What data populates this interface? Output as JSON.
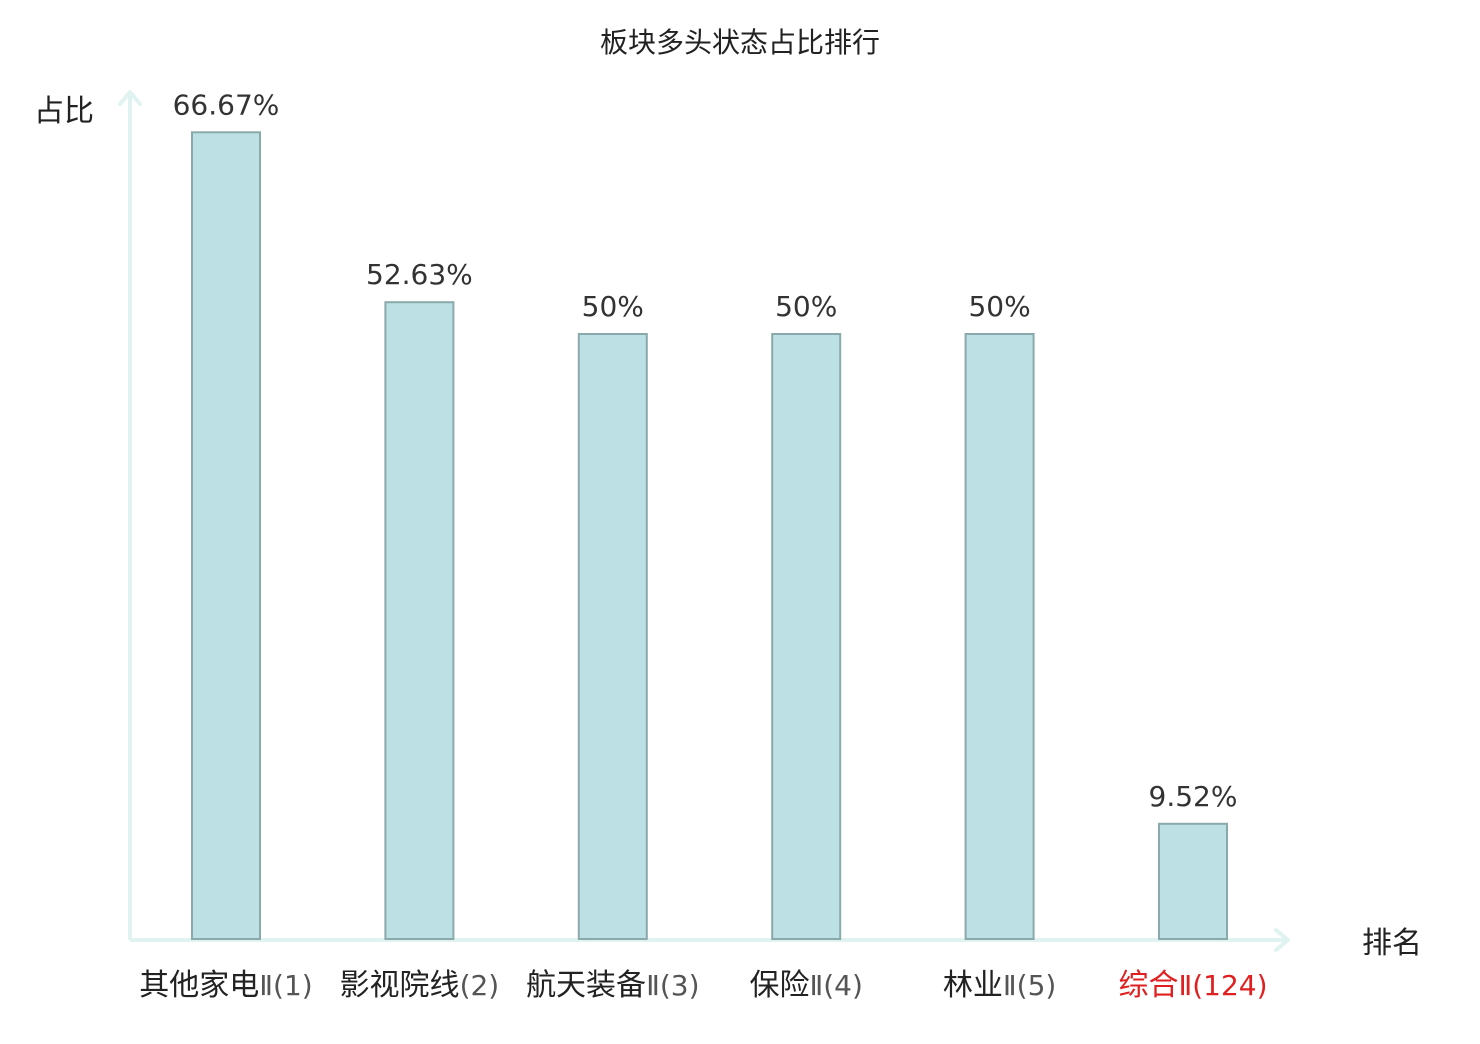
{
  "chart_data": {
    "type": "bar",
    "title": "板块多头状态占比排行",
    "ylabel": "占比",
    "xlabel": "排名",
    "ylim": [
      0,
      70
    ],
    "grid": false,
    "legend": "none",
    "categories": [
      {
        "name": "其他家电",
        "rank": "Ⅱ(1)",
        "value": 66.67,
        "label": "66.67%",
        "highlight": false
      },
      {
        "name": "影视院线",
        "rank": "(2)",
        "value": 52.63,
        "label": "52.63%",
        "highlight": false
      },
      {
        "name": "航天装备",
        "rank": "Ⅱ(3)",
        "value": 50,
        "label": "50%",
        "highlight": false
      },
      {
        "name": "保险",
        "rank": "Ⅱ(4)",
        "value": 50,
        "label": "50%",
        "highlight": false
      },
      {
        "name": "林业",
        "rank": "Ⅱ(5)",
        "value": 50,
        "label": "50%",
        "highlight": false
      },
      {
        "name": "综合",
        "rank": "Ⅱ(124)",
        "value": 9.52,
        "label": "9.52%",
        "highlight": true
      }
    ],
    "colors": {
      "bar_fill": "#bce0e3",
      "bar_stroke": "#8aa9ab",
      "axis": "#e0f3f1",
      "text": "#222222",
      "rank_text": "#555555",
      "highlight": "#e02020"
    }
  }
}
